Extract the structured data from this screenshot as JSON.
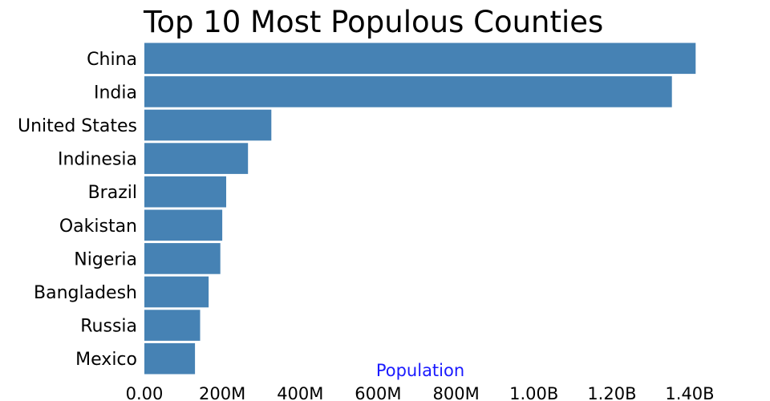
{
  "chart_data": {
    "type": "bar",
    "orientation": "horizontal",
    "title": "Top 10 Most Populous Counties",
    "xlabel": "Population",
    "ylabel": "",
    "categories": [
      "China",
      "India",
      "United States",
      "Indinesia",
      "Brazil",
      "Oakistan",
      "Nigeria",
      "Bangladesh",
      "Russia",
      "Mexico"
    ],
    "values": [
      1415000000,
      1354000000,
      326000000,
      266000000,
      210000000,
      200000000,
      195000000,
      165000000,
      143000000,
      130000000
    ],
    "xlim": [
      0,
      1400000000
    ],
    "x_ticks": [
      0,
      200000000,
      400000000,
      600000000,
      800000000,
      1000000000,
      1200000000,
      1400000000
    ],
    "x_tick_labels": [
      "0.00",
      "200M",
      "400M",
      "600M",
      "800M",
      "1.00B",
      "1.20B",
      "1.40B"
    ],
    "grid": false,
    "legend": "none",
    "colors": {
      "bar": "#4682b4",
      "axis_title": "#1a1aff",
      "text": "#000000"
    }
  }
}
